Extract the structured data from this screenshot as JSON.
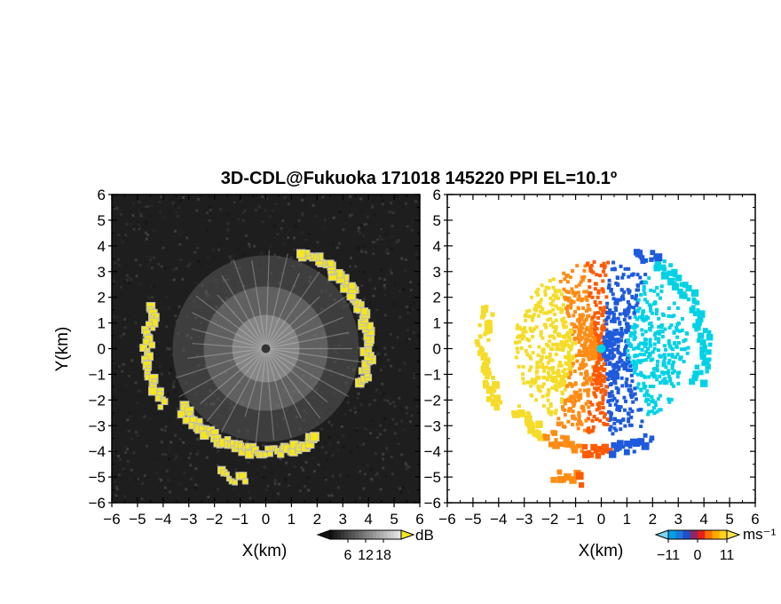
{
  "title": "3D-CDL@Fukuoka 171018 145220 PPI EL=10.1º",
  "chart_data": [
    {
      "type": "heatmap",
      "quantity": "reflectivity",
      "xlabel": "X(km)",
      "ylabel": "Y(km)",
      "xlim": [
        -6,
        6
      ],
      "ylim": [
        -6,
        6
      ],
      "xticks": [
        "−6",
        "−5",
        "−4",
        "−3",
        "−2",
        "−1",
        "0",
        "1",
        "2",
        "3",
        "4",
        "5",
        "6"
      ],
      "yticks": [
        "6",
        "5",
        "4",
        "3",
        "2",
        "1",
        "0",
        "−1",
        "−2",
        "−3",
        "−4",
        "−5",
        "−6"
      ],
      "colorbar": {
        "unit": "dB",
        "ticks": [
          "6",
          "12",
          "18"
        ],
        "range": [
          0,
          24
        ]
      },
      "colors": {
        "background": "#1e1e1e",
        "strong_echo": "#f5e61e"
      },
      "echo_arcs_km": [
        {
          "r": 4.0,
          "from_deg": -20,
          "to_deg": 70
        },
        {
          "r": 4.6,
          "from_deg": 160,
          "to_deg": 210
        },
        {
          "r": 4.0,
          "from_deg": 215,
          "to_deg": 300
        },
        {
          "r": 5.2,
          "from_deg": 250,
          "to_deg": 262
        }
      ]
    },
    {
      "type": "heatmap",
      "quantity": "radial velocity",
      "xlabel": "X(km)",
      "xlim": [
        -6,
        6
      ],
      "ylim": [
        -6,
        6
      ],
      "xticks": [
        "−6",
        "−5",
        "−4",
        "−3",
        "−2",
        "−1",
        "0",
        "1",
        "2",
        "3",
        "4",
        "5",
        "6"
      ],
      "yticks": [
        "6",
        "5",
        "4",
        "3",
        "2",
        "1",
        "0",
        "−1",
        "−2",
        "−3",
        "−4",
        "−5",
        "−6"
      ],
      "colorbar": {
        "unit": "ms⁻¹",
        "ticks": [
          "−11",
          "0",
          "11"
        ],
        "range": [
          -11,
          11
        ]
      },
      "colors": {
        "negative": "#1e5adc",
        "near_zero": "#00d2e6",
        "positive": "#ff5a00",
        "far_positive": "#f5dc28"
      }
    }
  ]
}
